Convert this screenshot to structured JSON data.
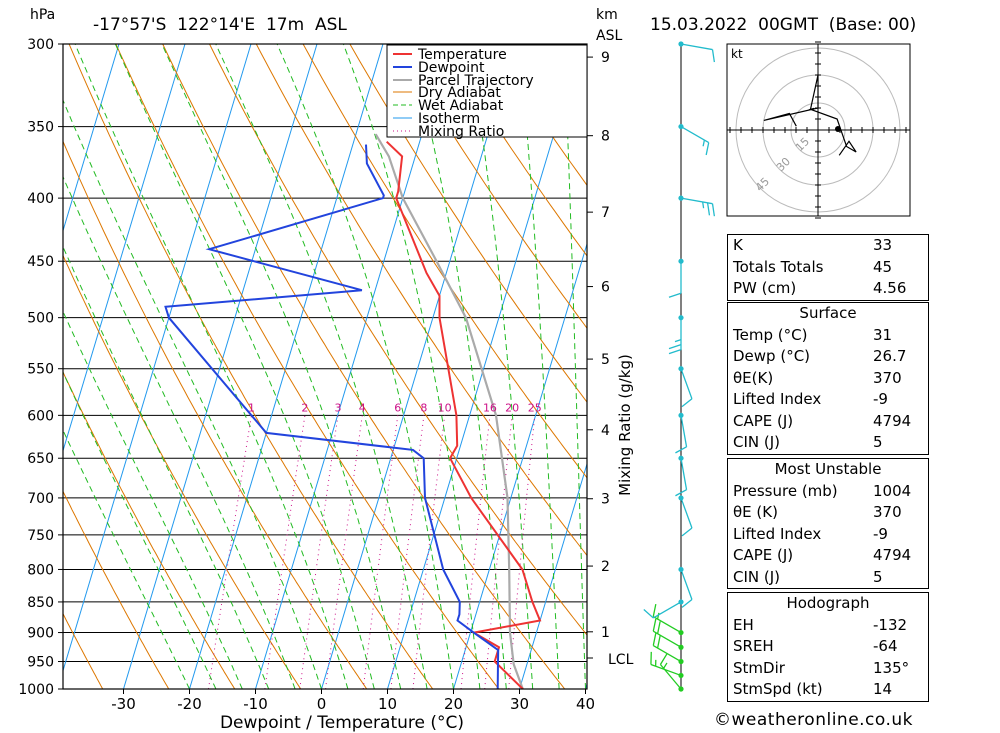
{
  "header": {
    "units_hpa": "hPa",
    "units_km": "km",
    "units_asl": "ASL",
    "location": "-17°57'S  122°14'E  17m  ASL",
    "datetime": "15.03.2022  00GMT  (Base: 00)"
  },
  "chart_data": {
    "type": "line",
    "title": "-17°57'S  122°14'E  17m  ASL",
    "xlabel": "Dewpoint / Temperature (°C)",
    "ylabel": "hPa",
    "y2label": "Mixing Ratio (g/kg)",
    "x_ticks": [
      -30,
      -20,
      -10,
      0,
      10,
      20,
      30,
      40
    ],
    "pressure_ticks": [
      300,
      350,
      400,
      450,
      500,
      550,
      600,
      650,
      700,
      750,
      800,
      850,
      900,
      950,
      1000
    ],
    "km_ticks": [
      1,
      2,
      3,
      4,
      5,
      6,
      7,
      8,
      9
    ],
    "lcl_label": "LCL",
    "mixing_ratio_labels": [
      "1",
      "2",
      "3",
      "4",
      "6",
      "8",
      "10",
      "16",
      "20",
      "25"
    ],
    "legend": [
      "Temperature",
      "Dewpoint",
      "Parcel Trajectory",
      "Dry Adiabat",
      "Wet Adiabat",
      "Isotherm",
      "Mixing Ratio"
    ],
    "colors": {
      "temperature": "#ee3333",
      "dewpoint": "#2244dd",
      "parcel": "#aaaaaa",
      "dry_adiabat": "#dd7700",
      "wet_adiabat": "#22bb22",
      "isotherm": "#2299ee",
      "mixing_ratio": "#cc1188",
      "wind_green": "#22cc22",
      "wind_cyan": "#22bbcc"
    },
    "series": [
      {
        "name": "Temperature",
        "points": [
          [
            1000,
            30.5
          ],
          [
            950,
            25
          ],
          [
            925,
            25
          ],
          [
            900,
            20.5
          ],
          [
            880,
            30
          ],
          [
            850,
            28
          ],
          [
            800,
            25
          ],
          [
            700,
            14
          ],
          [
            650,
            9
          ],
          [
            635,
            9.5
          ],
          [
            600,
            8
          ],
          [
            500,
            1
          ],
          [
            480,
            0
          ],
          [
            460,
            -3
          ],
          [
            400,
            -11
          ],
          [
            395,
            -11
          ],
          [
            370,
            -12
          ],
          [
            360,
            -15
          ]
        ]
      },
      {
        "name": "Dewpoint",
        "points": [
          [
            1000,
            26.7
          ],
          [
            950,
            25.5
          ],
          [
            930,
            25
          ],
          [
            900,
            20.5
          ],
          [
            880,
            17.5
          ],
          [
            870,
            17.5
          ],
          [
            850,
            17
          ],
          [
            800,
            13
          ],
          [
            700,
            7
          ],
          [
            650,
            5
          ],
          [
            640,
            3
          ],
          [
            620,
            -20
          ],
          [
            500,
            -40
          ],
          [
            490,
            -41
          ],
          [
            475,
            -12
          ],
          [
            440,
            -37
          ],
          [
            400,
            -13
          ],
          [
            398,
            -13
          ],
          [
            375,
            -17
          ],
          [
            362,
            -18
          ]
        ]
      },
      {
        "name": "Parcel Trajectory",
        "points": [
          [
            1000,
            30.5
          ],
          [
            955,
            28
          ],
          [
            900,
            26
          ],
          [
            800,
            23
          ],
          [
            700,
            19.5
          ],
          [
            600,
            14
          ],
          [
            500,
            5
          ],
          [
            450,
            -2
          ],
          [
            400,
            -10
          ],
          [
            370,
            -14
          ],
          [
            355,
            -17
          ]
        ]
      }
    ],
    "wind_barbs": [
      {
        "p": 1000,
        "dir": 320,
        "kt": 15
      },
      {
        "p": 975,
        "dir": 290,
        "kt": 15
      },
      {
        "p": 950,
        "dir": 300,
        "kt": 20
      },
      {
        "p": 925,
        "dir": 300,
        "kt": 20
      },
      {
        "p": 900,
        "dir": 300,
        "kt": 15
      },
      {
        "p": 850,
        "dir": 240,
        "kt": 10
      },
      {
        "p": 800,
        "dir": 160,
        "kt": 10
      },
      {
        "p": 700,
        "dir": 160,
        "kt": 10
      },
      {
        "p": 650,
        "dir": 170,
        "kt": 10
      },
      {
        "p": 600,
        "dir": 170,
        "kt": 10
      },
      {
        "p": 550,
        "dir": 160,
        "kt": 10
      },
      {
        "p": 500,
        "dir": 180,
        "kt": 25
      },
      {
        "p": 450,
        "dir": 180,
        "kt": 10
      },
      {
        "p": 400,
        "dir": 100,
        "kt": 25
      },
      {
        "p": 350,
        "dir": 120,
        "kt": 15
      },
      {
        "p": 300,
        "dir": 100,
        "kt": 10
      }
    ],
    "hodograph": {
      "unit_label": "kt",
      "rings": [
        "15",
        "30",
        "45"
      ]
    }
  },
  "indices": {
    "k_label": "K",
    "k": "33",
    "tt_label": "Totals Totals",
    "tt": "45",
    "pw_label": "PW (cm)",
    "pw": "4.56"
  },
  "surface": {
    "title": "Surface",
    "temp_label": "Temp (°C)",
    "temp": "31",
    "dewp_label": "Dewp (°C)",
    "dewp": "26.7",
    "theta_label": "θE(K)",
    "theta": "370",
    "li_label": "Lifted Index",
    "li": "-9",
    "cape_label": "CAPE (J)",
    "cape": "4794",
    "cin_label": "CIN (J)",
    "cin": "5"
  },
  "most_unstable": {
    "title": "Most Unstable",
    "pressure_label": "Pressure (mb)",
    "pressure": "1004",
    "theta_label": "θE (K)",
    "theta": "370",
    "li_label": "Lifted Index",
    "li": "-9",
    "cape_label": "CAPE (J)",
    "cape": "4794",
    "cin_label": "CIN (J)",
    "cin": "5"
  },
  "hodograph_box": {
    "title": "Hodograph",
    "eh_label": "EH",
    "eh": "-132",
    "sreh_label": "SREH",
    "sreh": "-64",
    "stmdir_label": "StmDir",
    "stmdir": "135°",
    "stmspd_label": "StmSpd (kt)",
    "stmspd": "14"
  },
  "footer": {
    "credit": "©weatheronline.co.uk"
  }
}
